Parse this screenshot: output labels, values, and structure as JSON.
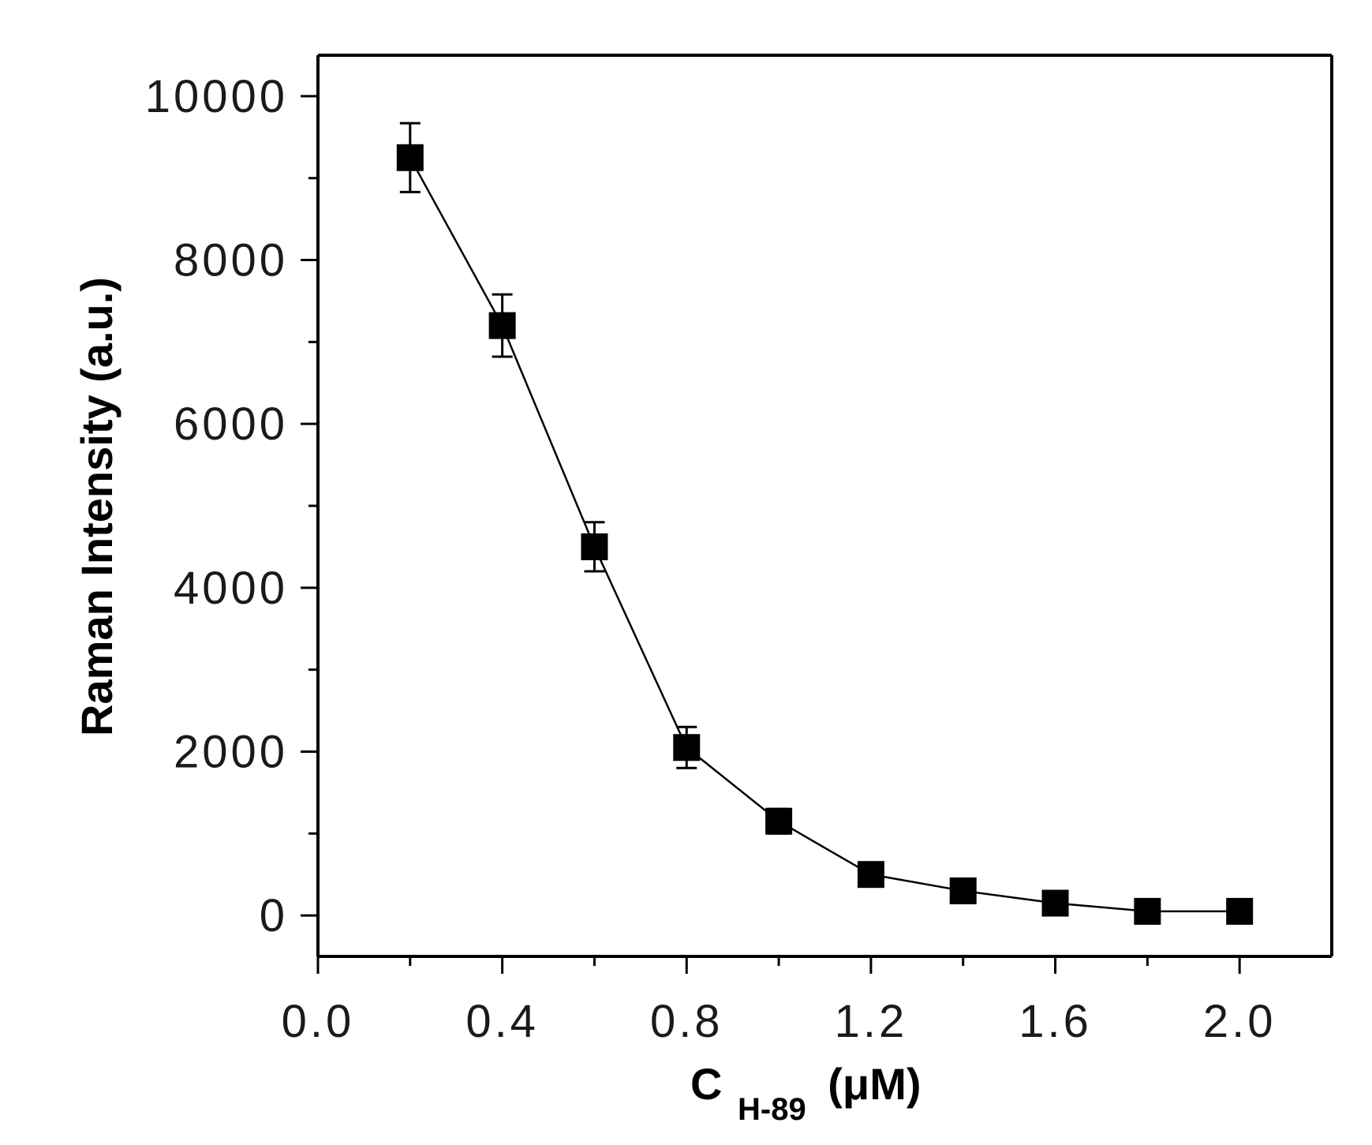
{
  "chart_data": {
    "type": "scatter",
    "xlabel": {
      "main": "C",
      "subscript": "H-89",
      "unit": "(μM)"
    },
    "ylabel": "Raman Intensity (a.u.)",
    "xlim": [
      0.0,
      2.2
    ],
    "ylim": [
      -500,
      10500
    ],
    "x_ticks": [
      "0.0",
      "0.4",
      "0.8",
      "1.2",
      "1.6",
      "2.0"
    ],
    "x_tick_values": [
      0.0,
      0.4,
      0.8,
      1.2,
      1.6,
      2.0
    ],
    "x_minor_ticks": [
      0.2,
      0.6,
      1.0,
      1.4,
      1.8
    ],
    "y_ticks": [
      "0",
      "2000",
      "4000",
      "6000",
      "8000",
      "10000"
    ],
    "y_tick_values": [
      0,
      2000,
      4000,
      6000,
      8000,
      10000
    ],
    "y_minor_ticks": [
      1000,
      3000,
      5000,
      7000,
      9000
    ],
    "grid": false,
    "legend": "none",
    "series": [
      {
        "marker": "filled-square",
        "line": "connected",
        "color": "#000000",
        "x": [
          0.2,
          0.4,
          0.6,
          0.8,
          1.0,
          1.2,
          1.4,
          1.6,
          1.8,
          2.0
        ],
        "y": [
          9250,
          7200,
          4500,
          2050,
          1150,
          500,
          300,
          150,
          50,
          50
        ],
        "error": [
          420,
          380,
          300,
          250,
          150,
          120,
          100,
          80,
          60,
          60
        ]
      }
    ]
  }
}
